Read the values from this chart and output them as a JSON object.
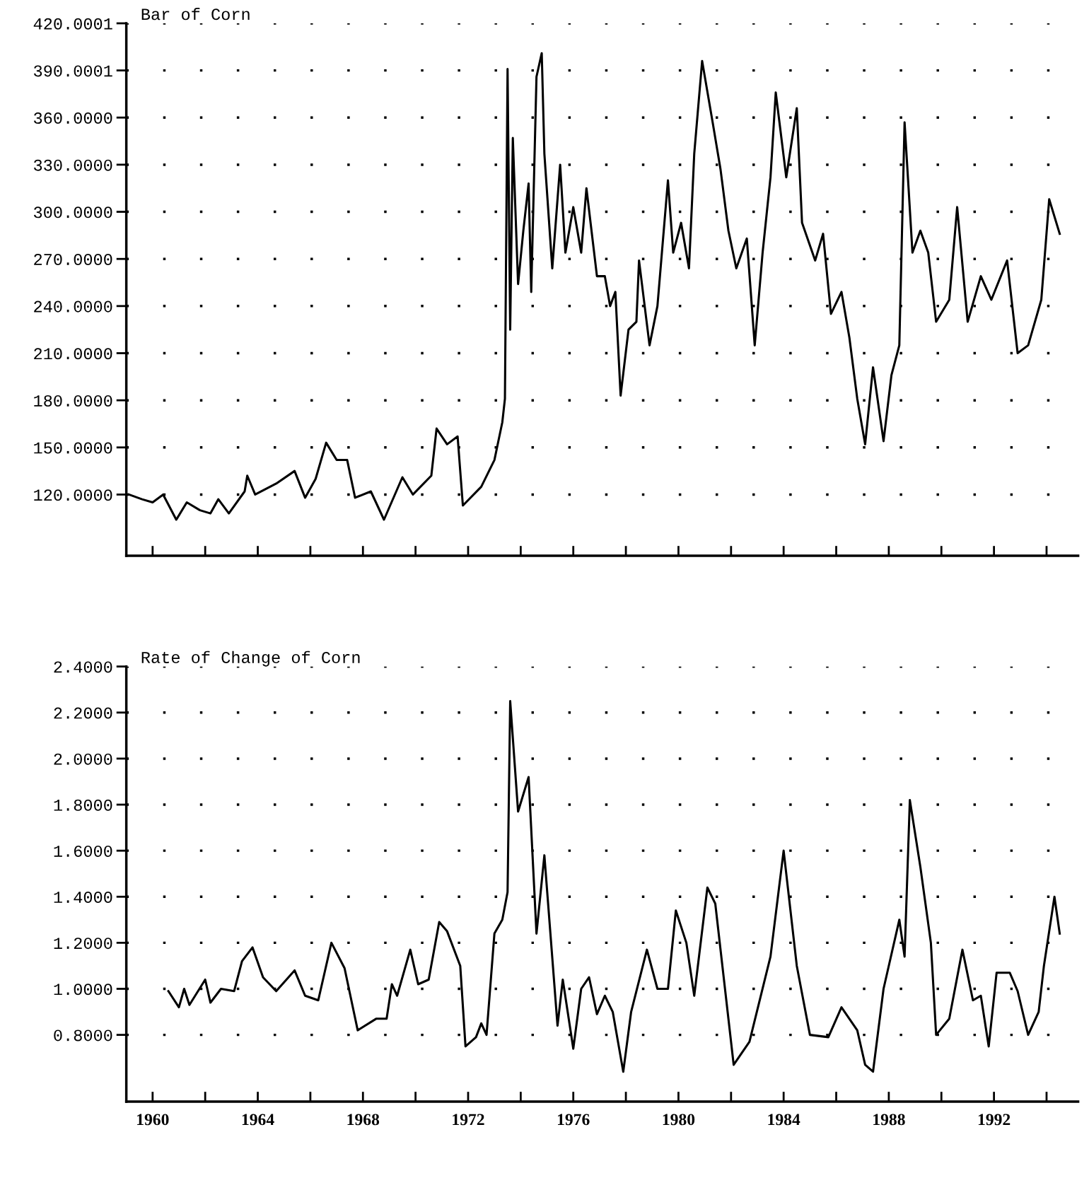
{
  "chart_data": [
    {
      "type": "line",
      "title": "Bar of Corn",
      "tick_labels": "y",
      "grid": "y",
      "line_style": "solid",
      "x": [
        1959.1,
        1959.6,
        1960.0,
        1960.4,
        1960.9,
        1961.3,
        1961.8,
        1962.2,
        1962.5,
        1962.9,
        1963.5,
        1963.6,
        1963.9,
        1964.7,
        1965.4,
        1965.8,
        1966.2,
        1966.6,
        1967.0,
        1967.4,
        1967.7,
        1968.3,
        1968.8,
        1969.5,
        1969.9,
        1970.6,
        1970.8,
        1971.2,
        1971.6,
        1971.8,
        1972.5,
        1973.0,
        1973.3,
        1973.4,
        1973.5,
        1973.6,
        1973.7,
        1973.9,
        1974.1,
        1974.3,
        1974.4,
        1974.6,
        1974.8,
        1974.9,
        1975.2,
        1975.5,
        1975.7,
        1976.0,
        1976.3,
        1976.5,
        1976.9,
        1977.2,
        1977.4,
        1977.6,
        1977.8,
        1978.1,
        1978.4,
        1978.5,
        1978.9,
        1979.2,
        1979.6,
        1979.8,
        1980.1,
        1980.4,
        1980.6,
        1980.9,
        1981.3,
        1981.6,
        1981.9,
        1982.2,
        1982.6,
        1982.9,
        1983.2,
        1983.5,
        1983.7,
        1984.1,
        1984.5,
        1984.7,
        1985.2,
        1985.5,
        1985.8,
        1986.2,
        1986.5,
        1986.8,
        1987.1,
        1987.4,
        1987.8,
        1988.1,
        1988.4,
        1988.6,
        1988.9,
        1989.2,
        1989.5,
        1989.8,
        1990.3,
        1990.6,
        1991.0,
        1991.5,
        1991.9,
        1992.5,
        1992.9,
        1993.3,
        1993.8,
        1994.1,
        1994.5
      ],
      "series": [
        {
          "color": "#000000",
          "values": [
            120,
            117,
            115,
            120,
            104,
            115,
            110,
            108,
            117,
            108,
            122,
            132,
            120,
            127,
            135,
            118,
            130,
            153,
            142,
            142,
            118,
            122,
            104,
            131,
            120,
            132,
            162,
            152,
            157,
            113,
            125,
            142,
            166,
            181,
            391,
            225,
            347,
            254,
            288,
            318,
            249,
            386,
            401,
            337,
            264,
            330,
            274,
            303,
            274,
            315,
            259,
            259,
            240,
            249,
            183,
            225,
            230,
            269,
            215,
            240,
            320,
            274,
            293,
            264,
            337,
            396,
            357,
            327,
            288,
            264,
            283,
            215,
            274,
            322,
            376,
            322,
            366,
            293,
            269,
            286,
            235,
            249,
            220,
            181,
            152,
            201,
            154,
            196,
            215,
            357,
            274,
            288,
            274,
            230,
            244,
            303,
            230,
            259,
            244,
            269,
            210,
            215,
            244,
            308,
            286
          ]
        }
      ],
      "xlim": [
        1959.0,
        1995.2
      ],
      "ylim": [
        81,
        420.0001
      ],
      "xticks": [
        1960,
        1962,
        1964,
        1966,
        1968,
        1970,
        1972,
        1974,
        1976,
        1978,
        1980,
        1982,
        1984,
        1986,
        1988,
        1990,
        1992,
        1994
      ],
      "yticks": [
        {
          "value": 120,
          "label": "120.0000"
        },
        {
          "value": 150,
          "label": "150.0000"
        },
        {
          "value": 180,
          "label": "180.0000"
        },
        {
          "value": 210,
          "label": "210.0000"
        },
        {
          "value": 240,
          "label": "240.0000"
        },
        {
          "value": 270,
          "label": "270.0000"
        },
        {
          "value": 300,
          "label": "300.0000"
        },
        {
          "value": 330,
          "label": "330.0000"
        },
        {
          "value": 360,
          "label": "360.0000"
        },
        {
          "value": 390.0001,
          "label": "390.0001"
        },
        {
          "value": 420.0001,
          "label": "420.0001"
        }
      ]
    },
    {
      "type": "line",
      "title": "Rate of Change of Corn",
      "grid": "y",
      "line_style": "solid",
      "x": [
        1960.6,
        1961.0,
        1961.2,
        1961.4,
        1962.0,
        1962.2,
        1962.6,
        1963.1,
        1963.4,
        1963.8,
        1964.2,
        1964.7,
        1965.4,
        1965.8,
        1966.3,
        1966.8,
        1967.3,
        1967.8,
        1968.5,
        1968.9,
        1969.1,
        1969.3,
        1969.8,
        1970.1,
        1970.5,
        1970.9,
        1971.2,
        1971.7,
        1971.9,
        1972.3,
        1972.5,
        1972.7,
        1973.0,
        1973.3,
        1973.5,
        1973.6,
        1973.9,
        1974.3,
        1974.6,
        1974.9,
        1975.4,
        1975.6,
        1976.0,
        1976.3,
        1976.6,
        1976.9,
        1977.2,
        1977.5,
        1977.9,
        1978.2,
        1978.8,
        1979.2,
        1979.6,
        1979.9,
        1980.3,
        1980.6,
        1981.1,
        1981.4,
        1982.1,
        1982.7,
        1983.5,
        1984.0,
        1984.5,
        1985.0,
        1985.7,
        1986.2,
        1986.8,
        1987.1,
        1987.4,
        1987.8,
        1988.4,
        1988.6,
        1988.8,
        1989.2,
        1989.6,
        1989.8,
        1990.3,
        1990.8,
        1991.2,
        1991.5,
        1991.8,
        1992.1,
        1992.6,
        1992.9,
        1993.3,
        1993.7,
        1993.9,
        1994.3,
        1994.5
      ],
      "series": [
        {
          "color": "#000000",
          "values": [
            0.99,
            0.92,
            1.0,
            0.93,
            1.04,
            0.94,
            1.0,
            0.99,
            1.12,
            1.18,
            1.05,
            0.99,
            1.08,
            0.97,
            0.95,
            1.2,
            1.09,
            0.82,
            0.87,
            0.87,
            1.02,
            0.97,
            1.17,
            1.02,
            1.04,
            1.29,
            1.25,
            1.1,
            0.75,
            0.79,
            0.85,
            0.8,
            1.24,
            1.3,
            1.42,
            2.25,
            1.77,
            1.92,
            1.24,
            1.58,
            0.84,
            1.04,
            0.74,
            1.0,
            1.05,
            0.89,
            0.97,
            0.9,
            0.64,
            0.9,
            1.17,
            1.0,
            1.0,
            1.34,
            1.2,
            0.97,
            1.44,
            1.37,
            0.67,
            0.77,
            1.14,
            1.6,
            1.1,
            0.8,
            0.79,
            0.92,
            0.82,
            0.67,
            0.64,
            1.0,
            1.3,
            1.14,
            1.82,
            1.53,
            1.2,
            0.8,
            0.87,
            1.17,
            0.95,
            0.97,
            0.75,
            1.07,
            1.07,
            0.99,
            0.8,
            0.9,
            1.1,
            1.4,
            1.24
          ]
        }
      ],
      "xlim": [
        1959.0,
        1995.2
      ],
      "ylim": [
        0.51,
        2.4
      ],
      "xticks": [
        {
          "value": 1960,
          "label": "1960"
        },
        {
          "value": 1962,
          "label": null
        },
        {
          "value": 1964,
          "label": "1964"
        },
        {
          "value": 1966,
          "label": null
        },
        {
          "value": 1968,
          "label": "1968"
        },
        {
          "value": 1970,
          "label": null
        },
        {
          "value": 1972,
          "label": "1972"
        },
        {
          "value": 1974,
          "label": null
        },
        {
          "value": 1976,
          "label": "1976"
        },
        {
          "value": 1978,
          "label": null
        },
        {
          "value": 1980,
          "label": "1980"
        },
        {
          "value": 1982,
          "label": null
        },
        {
          "value": 1984,
          "label": "1984"
        },
        {
          "value": 1986,
          "label": null
        },
        {
          "value": 1988,
          "label": "1988"
        },
        {
          "value": 1990,
          "label": null
        },
        {
          "value": 1992,
          "label": "1992"
        },
        {
          "value": 1994,
          "label": null
        }
      ],
      "yticks": [
        {
          "value": 0.8,
          "label": "0.8000"
        },
        {
          "value": 1.0,
          "label": "1.0000"
        },
        {
          "value": 1.2,
          "label": "1.2000"
        },
        {
          "value": 1.4,
          "label": "1.4000"
        },
        {
          "value": 1.6,
          "label": "1.6000"
        },
        {
          "value": 1.8,
          "label": "1.8000"
        },
        {
          "value": 2.0,
          "label": "2.0000"
        },
        {
          "value": 2.2,
          "label": "2.2000"
        },
        {
          "value": 2.4,
          "label": "2.4000"
        }
      ]
    }
  ]
}
